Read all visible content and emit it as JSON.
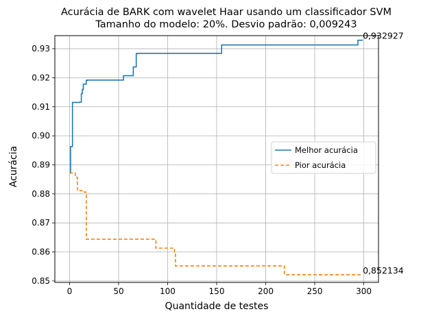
{
  "chart_data": {
    "type": "line",
    "title": "Acurácia de BARK com wavelet Haar usando um classificador SVM",
    "subtitle": "Tamanho do modelo: 20%. Desvio padrão: 0,009243",
    "xlabel": "Quantidade de testes",
    "ylabel": "Acurácia",
    "xlim": [
      -15,
      315
    ],
    "ylim": [
      0.8495,
      0.9345
    ],
    "xticks": [
      0,
      50,
      100,
      150,
      200,
      250,
      300
    ],
    "yticks": [
      0.85,
      0.86,
      0.87,
      0.88,
      0.89,
      0.9,
      0.91,
      0.92,
      0.93
    ],
    "ytick_labels": [
      "0.85",
      "0.86",
      "0.87",
      "0.88",
      "0.89",
      "0.90",
      "0.91",
      "0.92",
      "0.93"
    ],
    "grid": true,
    "legend_position": "center-right",
    "series": [
      {
        "name": "Melhor acurácia",
        "color": "#1f77b4",
        "style": "solid",
        "points": [
          [
            0,
            0.8872
          ],
          [
            1,
            0.8872
          ],
          [
            1,
            0.8963
          ],
          [
            3,
            0.8963
          ],
          [
            3,
            0.9115
          ],
          [
            10,
            0.9115
          ],
          [
            10,
            0.9116
          ],
          [
            12,
            0.9116
          ],
          [
            12,
            0.9145
          ],
          [
            13,
            0.9145
          ],
          [
            13,
            0.916
          ],
          [
            14,
            0.916
          ],
          [
            14,
            0.9178
          ],
          [
            16,
            0.9178
          ],
          [
            16,
            0.9178
          ],
          [
            17,
            0.9178
          ],
          [
            17,
            0.9191
          ],
          [
            18,
            0.9191
          ],
          [
            18,
            0.9192
          ],
          [
            55,
            0.9192
          ],
          [
            55,
            0.9207
          ],
          [
            65,
            0.9207
          ],
          [
            65,
            0.9237
          ],
          [
            68,
            0.9237
          ],
          [
            68,
            0.9283
          ],
          [
            69,
            0.9283
          ],
          [
            69,
            0.9284
          ],
          [
            155,
            0.9284
          ],
          [
            155,
            0.9313
          ],
          [
            294,
            0.9313
          ],
          [
            294,
            0.932927
          ],
          [
            299,
            0.932927
          ]
        ]
      },
      {
        "name": "Pior acurácia",
        "color": "#ff7f0e",
        "style": "dashed",
        "points": [
          [
            0,
            0.8872
          ],
          [
            6,
            0.8872
          ],
          [
            6,
            0.8857
          ],
          [
            8,
            0.8857
          ],
          [
            8,
            0.8811
          ],
          [
            15,
            0.8811
          ],
          [
            15,
            0.8806
          ],
          [
            17,
            0.8806
          ],
          [
            17,
            0.8644
          ],
          [
            88,
            0.8644
          ],
          [
            88,
            0.8613
          ],
          [
            107,
            0.8613
          ],
          [
            107,
            0.8598
          ],
          [
            108,
            0.8598
          ],
          [
            108,
            0.8552
          ],
          [
            219,
            0.8552
          ],
          [
            219,
            0.852134
          ],
          [
            299,
            0.852134
          ]
        ]
      }
    ],
    "annotations": [
      {
        "text": "0,932927",
        "x": 299,
        "y": 0.932927
      },
      {
        "text": "0,852134",
        "x": 299,
        "y": 0.852134
      }
    ]
  }
}
